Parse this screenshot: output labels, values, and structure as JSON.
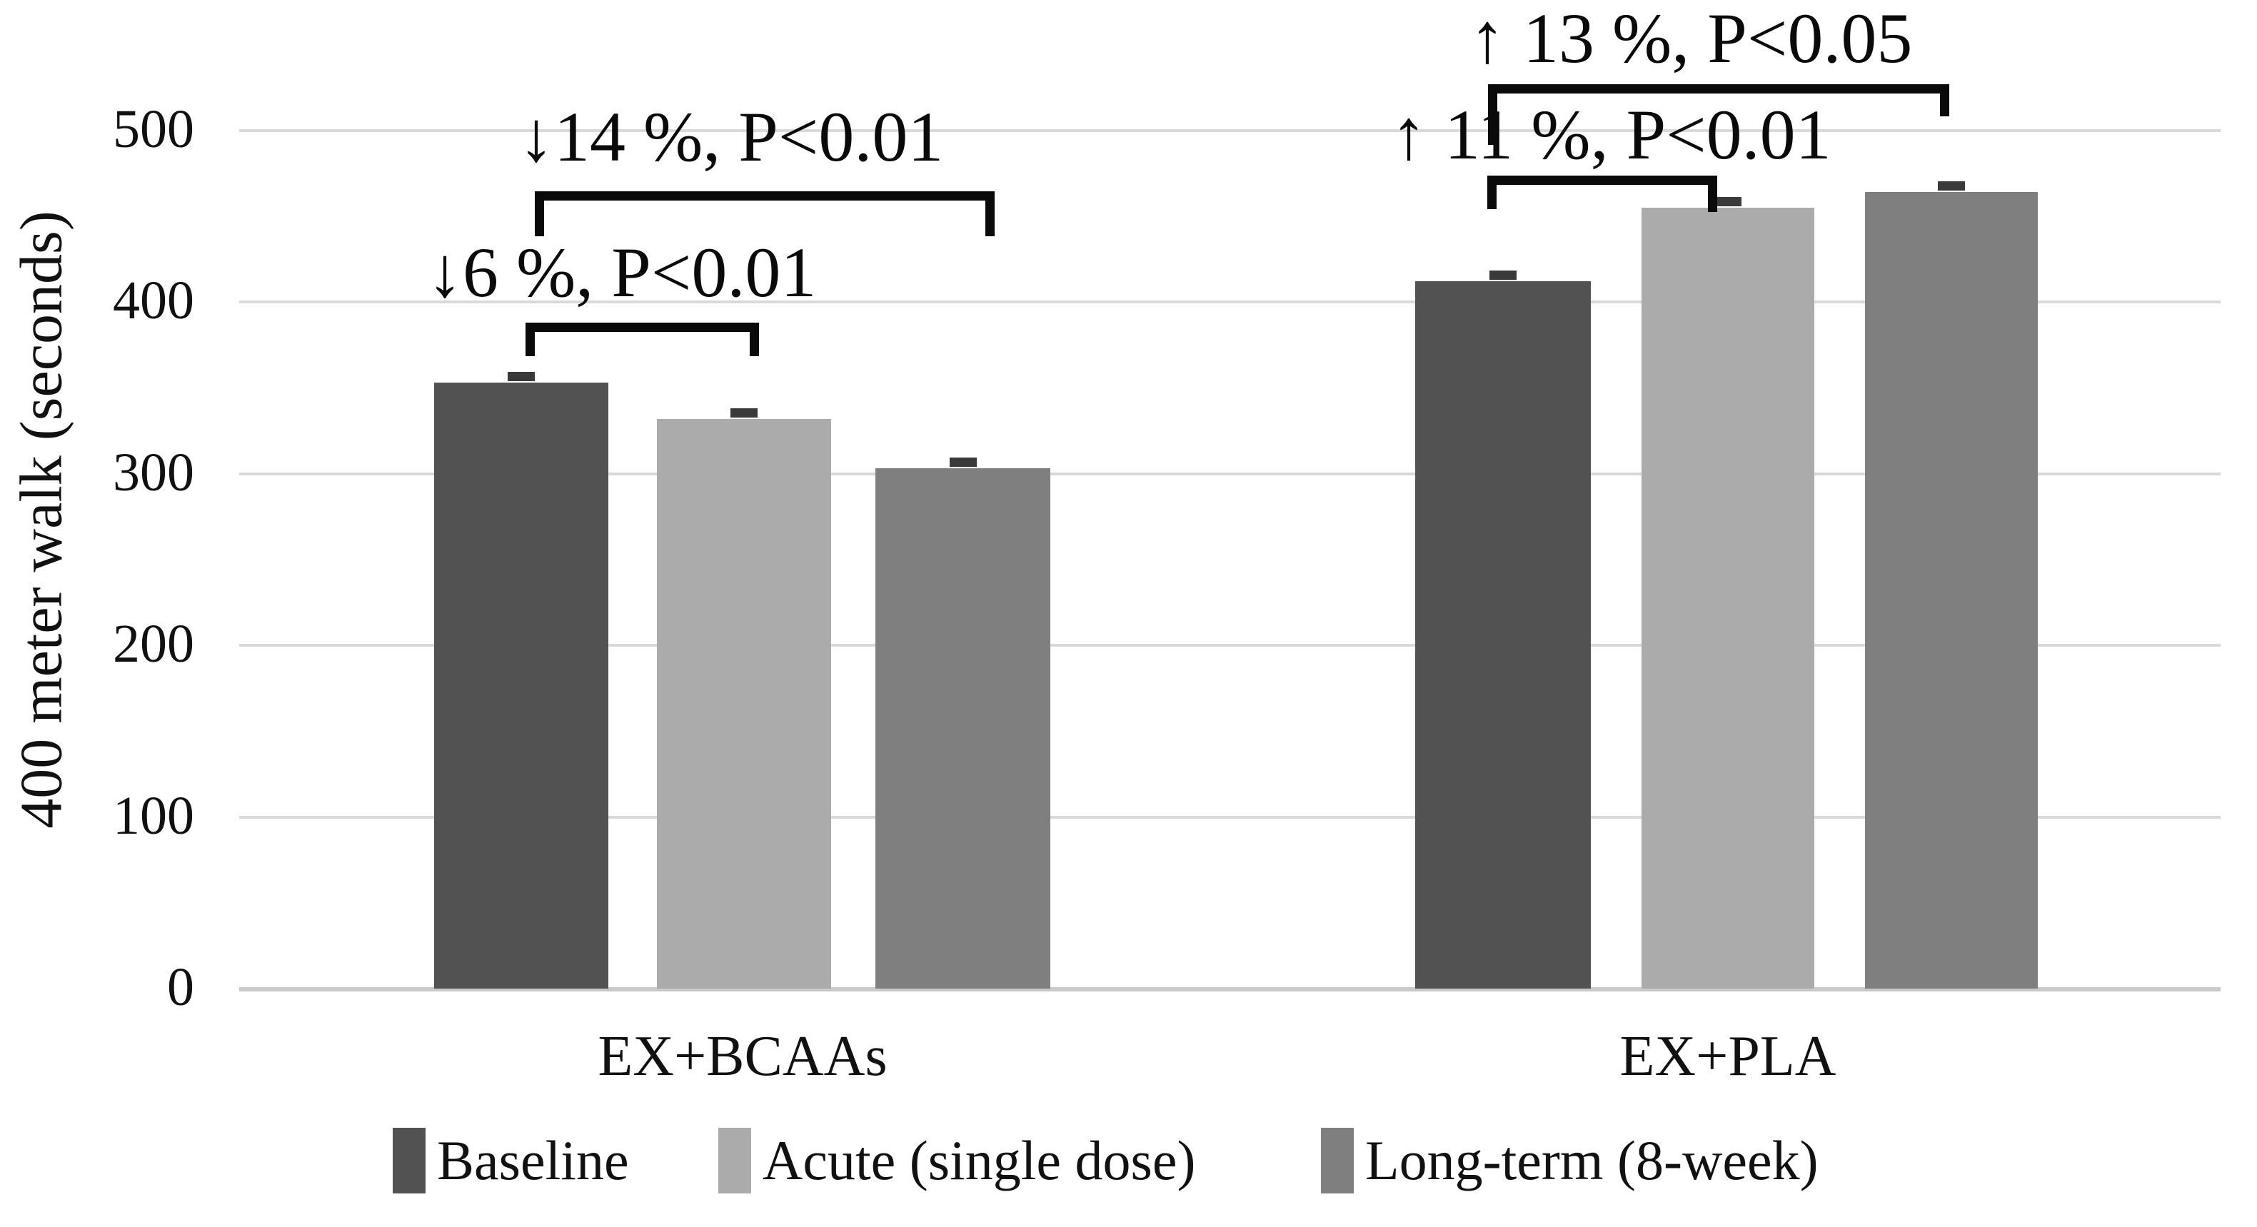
{
  "figure": {
    "background": "#ffffff",
    "text_color": "#0a0a0a",
    "gridline_color": "#d9d9d9",
    "baseline_color": "#c9c9c9",
    "bracket_color": "#0a0a0a",
    "error_bar_color": "#3a3a3a"
  },
  "y_axis": {
    "title": "400 meter walk (seconds)",
    "ticks": [
      "0",
      "100",
      "200",
      "300",
      "400",
      "500"
    ]
  },
  "chart_data": {
    "type": "bar",
    "title": "",
    "xlabel": "",
    "ylabel": "400 meter walk (seconds)",
    "ylim": [
      0,
      500
    ],
    "grid": "horizontal",
    "legend_position": "bottom",
    "categories": [
      "EX+BCAAs",
      "EX+PLA"
    ],
    "series": [
      {
        "name": "Baseline",
        "color": "#525252",
        "values": [
          353,
          412
        ],
        "error": [
          4,
          4
        ]
      },
      {
        "name": "Acute (single dose)",
        "color": "#ababab",
        "values": [
          332,
          455
        ],
        "error": [
          3,
          4
        ]
      },
      {
        "name": "Long-term (8-week)",
        "color": "#7f7f7f",
        "values": [
          303,
          464
        ],
        "error": [
          4,
          3
        ]
      }
    ],
    "annotations": [
      {
        "text": "↓6 %, P<0.01",
        "group": "EX+BCAAs",
        "compares": [
          "Baseline",
          "Acute (single dose)"
        ]
      },
      {
        "text": "↓14 %, P<0.01",
        "group": "EX+BCAAs",
        "compares": [
          "Baseline",
          "Long-term (8-week)"
        ]
      },
      {
        "text": "↑ 11 %, P<0.01",
        "group": "EX+PLA",
        "compares": [
          "Baseline",
          "Acute (single dose)"
        ]
      },
      {
        "text": "↑ 13 %, P<0.05",
        "group": "EX+PLA",
        "compares": [
          "Baseline",
          "Long-term (8-week)"
        ]
      }
    ]
  }
}
